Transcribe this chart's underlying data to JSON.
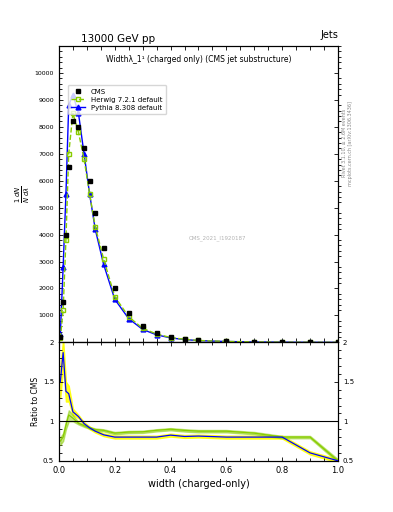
{
  "title_top": "13000 GeV pp",
  "title_right": "Jets",
  "plot_title": "Widthλ_1¹ (charged only) (CMS jet substructure)",
  "xlabel": "width (charged-only)",
  "ylabel_ratio": "Ratio to CMS",
  "right_label_top": "Rivet 3.1.10, ≥ 2.6M events",
  "right_label_bottom": "mcplots.cern.ch [arXiv:1306.3436]",
  "watermark": "CMS_2021_I1920187",
  "cms_x": [
    0.005,
    0.015,
    0.025,
    0.035,
    0.05,
    0.07,
    0.09,
    0.11,
    0.13,
    0.16,
    0.2,
    0.25,
    0.3,
    0.35,
    0.4,
    0.45,
    0.5,
    0.6,
    0.7,
    0.8,
    0.9,
    1.0
  ],
  "cms_y": [
    200,
    1500,
    4000,
    6500,
    8200,
    8000,
    7200,
    6000,
    4800,
    3500,
    2000,
    1100,
    600,
    350,
    200,
    130,
    80,
    40,
    20,
    10,
    5,
    2
  ],
  "herwig_x": [
    0.005,
    0.015,
    0.025,
    0.035,
    0.05,
    0.07,
    0.09,
    0.11,
    0.13,
    0.16,
    0.2,
    0.25,
    0.3,
    0.35,
    0.4,
    0.45,
    0.5,
    0.6,
    0.7,
    0.8,
    0.9,
    1.0
  ],
  "herwig_y": [
    150,
    1200,
    3800,
    7000,
    8500,
    7800,
    6800,
    5500,
    4300,
    3100,
    1700,
    950,
    520,
    310,
    180,
    115,
    70,
    35,
    17,
    8,
    4,
    1
  ],
  "pythia_x": [
    0.005,
    0.015,
    0.025,
    0.035,
    0.05,
    0.07,
    0.09,
    0.11,
    0.13,
    0.16,
    0.2,
    0.25,
    0.3,
    0.35,
    0.4,
    0.45,
    0.5,
    0.6,
    0.7,
    0.8,
    0.9,
    1.0
  ],
  "pythia_y": [
    300,
    2800,
    5500,
    8800,
    9200,
    8500,
    7000,
    5500,
    4200,
    2900,
    1600,
    880,
    480,
    280,
    165,
    105,
    65,
    32,
    16,
    8,
    3,
    1
  ],
  "ratio_x": [
    0.005,
    0.015,
    0.025,
    0.035,
    0.05,
    0.07,
    0.09,
    0.11,
    0.13,
    0.16,
    0.2,
    0.25,
    0.3,
    0.35,
    0.4,
    0.45,
    0.5,
    0.6,
    0.7,
    0.8,
    0.9,
    1.0
  ],
  "ratio_herwig": [
    0.75,
    0.8,
    0.95,
    1.08,
    1.04,
    0.975,
    0.944,
    0.917,
    0.896,
    0.886,
    0.85,
    0.864,
    0.867,
    0.886,
    0.9,
    0.885,
    0.875,
    0.875,
    0.85,
    0.8,
    0.8,
    0.5
  ],
  "ratio_herwig_lo": [
    0.7,
    0.75,
    0.9,
    1.0,
    1.0,
    0.96,
    0.93,
    0.905,
    0.882,
    0.873,
    0.835,
    0.85,
    0.853,
    0.872,
    0.886,
    0.87,
    0.86,
    0.86,
    0.835,
    0.785,
    0.785,
    0.48
  ],
  "ratio_herwig_hi": [
    0.8,
    0.85,
    1.0,
    1.14,
    1.08,
    0.99,
    0.958,
    0.929,
    0.91,
    0.899,
    0.865,
    0.878,
    0.881,
    0.9,
    0.914,
    0.9,
    0.89,
    0.89,
    0.865,
    0.815,
    0.815,
    0.52
  ],
  "ratio_pythia": [
    1.5,
    1.87,
    1.38,
    1.35,
    1.12,
    1.06,
    0.972,
    0.917,
    0.875,
    0.829,
    0.8,
    0.8,
    0.8,
    0.8,
    0.825,
    0.808,
    0.813,
    0.8,
    0.8,
    0.8,
    0.6,
    0.5
  ],
  "ratio_pythia_lo": [
    1.3,
    1.7,
    1.25,
    1.25,
    1.08,
    1.04,
    0.955,
    0.9,
    0.858,
    0.812,
    0.782,
    0.782,
    0.782,
    0.782,
    0.807,
    0.79,
    0.795,
    0.782,
    0.782,
    0.782,
    0.58,
    0.48
  ],
  "ratio_pythia_hi": [
    1.7,
    2.04,
    1.5,
    1.45,
    1.16,
    1.08,
    0.989,
    0.934,
    0.892,
    0.846,
    0.818,
    0.818,
    0.818,
    0.818,
    0.843,
    0.826,
    0.831,
    0.818,
    0.818,
    0.818,
    0.62,
    0.52
  ],
  "cms_color": "black",
  "herwig_color": "#88cc00",
  "pythia_color": "blue",
  "ylim_main": [
    2,
    11000
  ],
  "ylim_ratio": [
    0.5,
    2.0
  ],
  "xlim": [
    0.0,
    1.0
  ],
  "yticks_main": [
    1000,
    2000,
    3000,
    4000,
    5000,
    6000,
    7000,
    8000,
    9000,
    10000
  ],
  "yticks_ratio": [
    0.5,
    1.0,
    1.5,
    2.0
  ]
}
